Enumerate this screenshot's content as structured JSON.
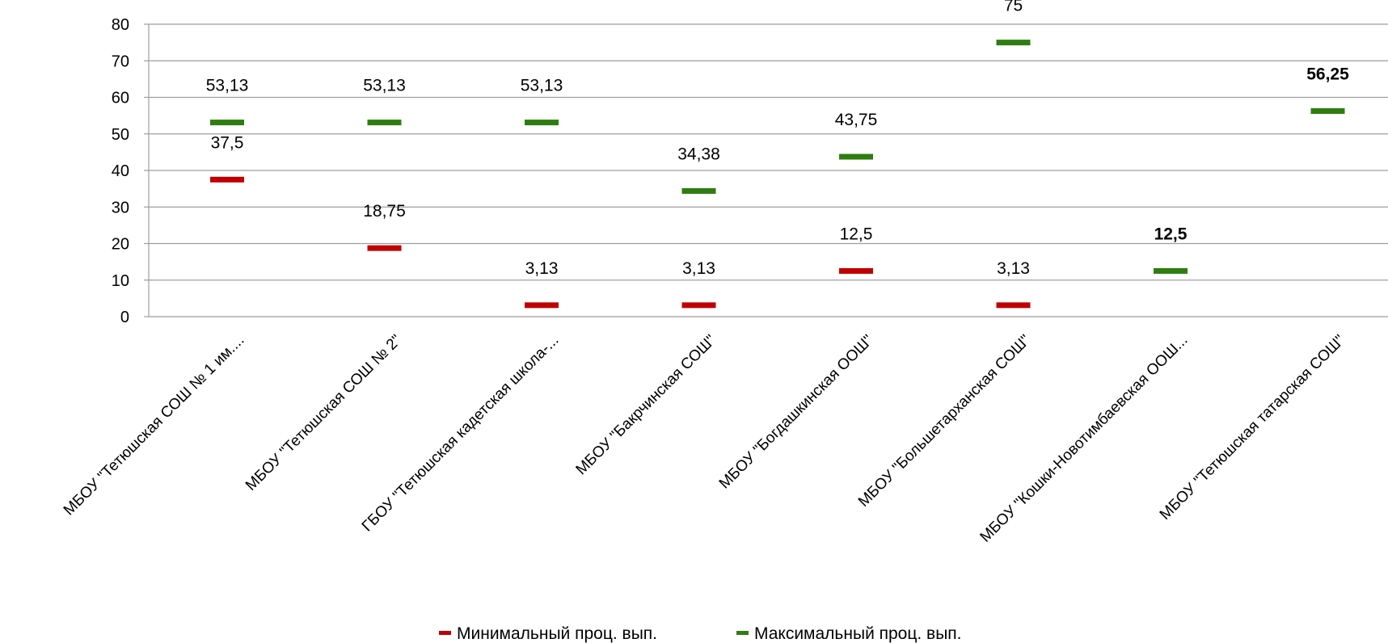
{
  "chart_data": {
    "type": "scatter",
    "title": "",
    "xlabel": "",
    "ylabel": "",
    "ylim": [
      0,
      80
    ],
    "yticks": [
      "0",
      "10",
      "20",
      "30",
      "40",
      "50",
      "60",
      "70",
      "80"
    ],
    "grid": true,
    "legend_position": "bottom",
    "categories": [
      "МБОУ \"Тетюшская СОШ № 1 им....",
      "МБОУ \"Тетюшская СОШ № 2\"",
      "ГБОУ \"Тетюшская кадетская школа-...",
      "МБОУ \"Бакрчинская СОШ\"",
      "МБОУ \"Богдашкинская ООШ\"",
      "МБОУ \"Большетарханская СОШ\"",
      "МБОУ \"Кошки-Новотимбаевская ООШ...",
      "МБОУ \"Тетюшская татарская СОШ\""
    ],
    "series": [
      {
        "name": "Минимальный проц. вып.",
        "color": "#c00000",
        "values": [
          37.5,
          18.75,
          3.13,
          3.13,
          12.5,
          3.13,
          null,
          null
        ],
        "labels": [
          "37,5",
          "18,75",
          "3,13",
          "3,13",
          "12,5",
          "3,13",
          "",
          ""
        ]
      },
      {
        "name": "Максимальный проц. вып.",
        "color": "#2e7d10",
        "values": [
          53.13,
          53.13,
          53.13,
          34.38,
          43.75,
          75,
          12.5,
          56.25
        ],
        "labels": [
          "53,13",
          "53,13",
          "53,13",
          "34,38",
          "43,75",
          "75",
          "12,5",
          "56,25"
        ],
        "bold_labels": [
          false,
          false,
          false,
          false,
          false,
          false,
          true,
          true
        ]
      }
    ]
  }
}
